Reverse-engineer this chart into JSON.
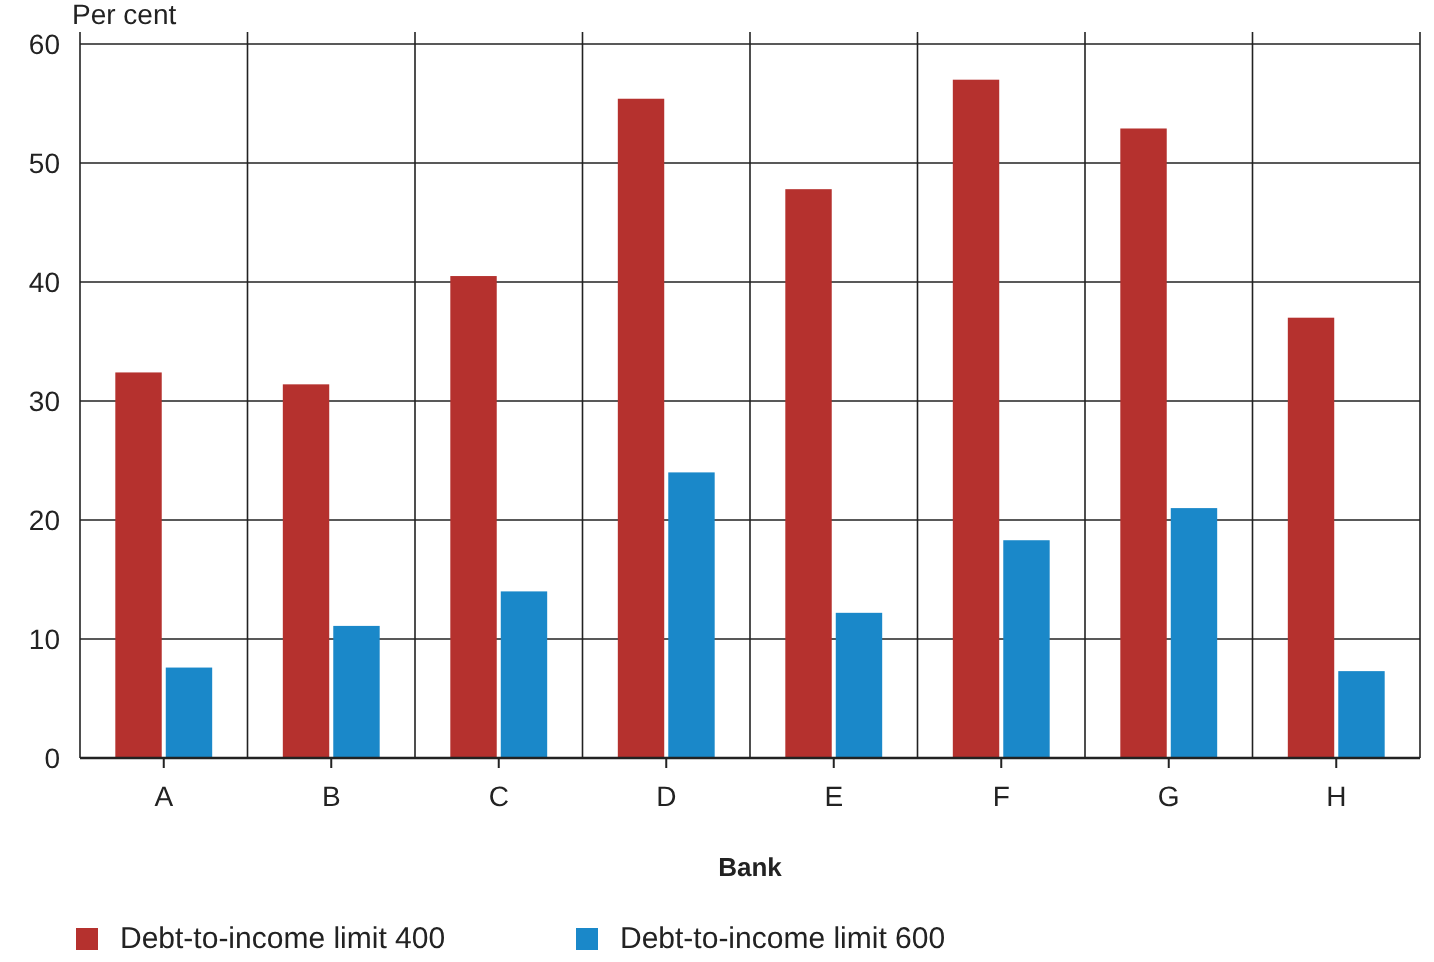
{
  "chart_data": {
    "type": "bar",
    "ylabel": "Per cent",
    "xlabel": "Bank",
    "categories": [
      "A",
      "B",
      "C",
      "D",
      "E",
      "F",
      "G",
      "H"
    ],
    "series": [
      {
        "name": "Debt-to-income limit 400",
        "color": "#b5312e",
        "values": [
          32.4,
          31.4,
          40.5,
          55.4,
          47.8,
          57.0,
          52.9,
          37.0
        ]
      },
      {
        "name": "Debt-to-income limit 600",
        "color": "#1a88c9",
        "values": [
          7.6,
          11.1,
          14.0,
          24.0,
          12.2,
          18.3,
          21.0,
          7.3
        ]
      }
    ],
    "ylim": [
      0,
      60
    ],
    "yticks": [
      0,
      10,
      20,
      30,
      40,
      50,
      60
    ],
    "grid": true,
    "legend": "bottom"
  }
}
